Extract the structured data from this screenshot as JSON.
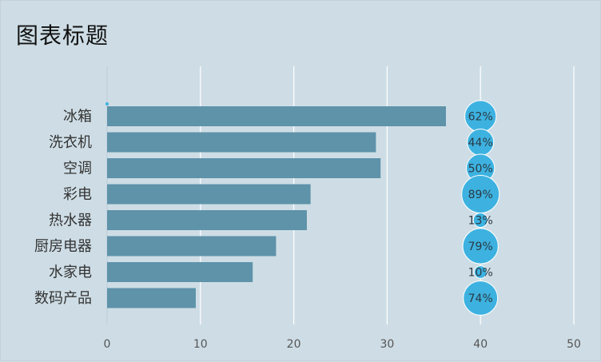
{
  "chart_data": {
    "type": "bar",
    "title": "图表标题",
    "orientation": "horizontal",
    "categories": [
      "冰箱",
      "洗衣机",
      "空调",
      "彩电",
      "热水器",
      "厨房电器",
      "水家电",
      "数码产品"
    ],
    "values": [
      36.3,
      28.8,
      29.3,
      21.8,
      21.4,
      18.1,
      15.6,
      9.5
    ],
    "xlim": [
      0,
      50
    ],
    "xticks": [
      0,
      10,
      20,
      30,
      40,
      50
    ],
    "grid": true,
    "bubble_x": 40,
    "percent_labels": [
      "62%",
      "44%",
      "50%",
      "89%",
      "13%",
      "79%",
      "10%",
      "74%"
    ],
    "percent_values": [
      0.62,
      0.44,
      0.5,
      0.89,
      0.13,
      0.79,
      0.1,
      0.74
    ],
    "colors": {
      "bar": "#5e93aa",
      "bubble": "#3db2e0",
      "grid": "#ffffff",
      "background": "#cedde5"
    }
  }
}
